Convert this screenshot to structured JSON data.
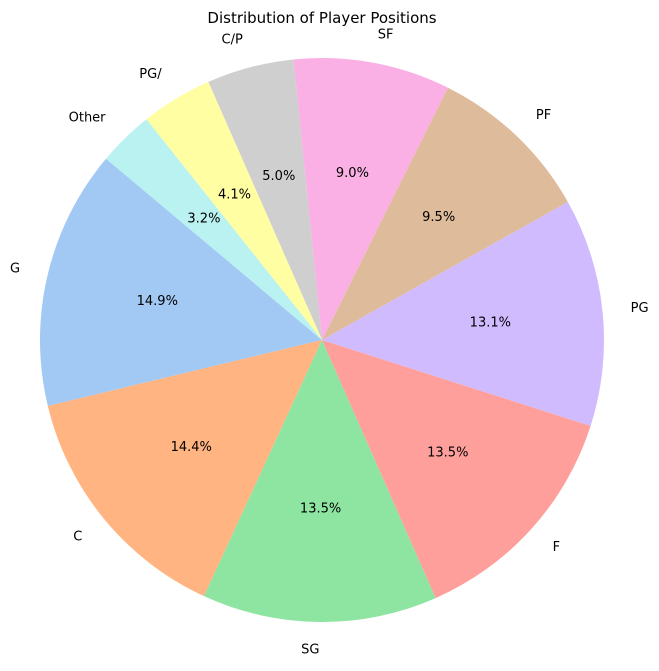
{
  "chart_data": {
    "type": "pie",
    "title": "Distribution of Player Positions",
    "start_angle_deg": 140,
    "direction": "counterclockwise",
    "slices": [
      {
        "label": "G",
        "value": 14.9,
        "pct_label": "14.9%",
        "color": "#a1c9f4"
      },
      {
        "label": "C",
        "value": 14.4,
        "pct_label": "14.4%",
        "color": "#ffb482"
      },
      {
        "label": "SG",
        "value": 13.5,
        "pct_label": "13.5%",
        "color": "#8de5a1"
      },
      {
        "label": "F",
        "value": 13.5,
        "pct_label": "13.5%",
        "color": "#ff9f9b"
      },
      {
        "label": "PG",
        "value": 13.1,
        "pct_label": "13.1%",
        "color": "#d0bbff"
      },
      {
        "label": "PF",
        "value": 9.5,
        "pct_label": "9.5%",
        "color": "#debb9b"
      },
      {
        "label": "SF",
        "value": 9.0,
        "pct_label": "9.0%",
        "color": "#fab0e4"
      },
      {
        "label": "C/P",
        "value": 5.0,
        "pct_label": "5.0%",
        "color": "#cfcfcf"
      },
      {
        "label": "PG/",
        "value": 4.1,
        "pct_label": "4.1%",
        "color": "#fffea3"
      },
      {
        "label": "Other",
        "value": 3.2,
        "pct_label": "3.2%",
        "color": "#b9f2f0"
      }
    ]
  }
}
